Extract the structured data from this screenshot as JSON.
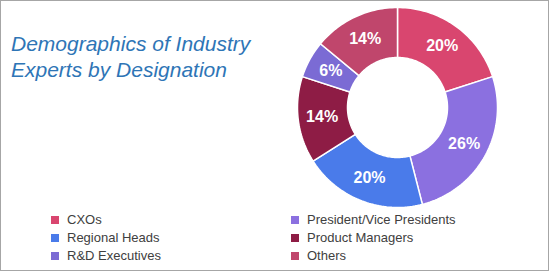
{
  "chart_data": {
    "type": "pie",
    "title": "Demographics of Industry Experts by Designation",
    "categories": [
      "CXOs",
      "President/Vice Presidents",
      "Regional Heads",
      "Product Managers",
      "R&D Executives",
      "Others"
    ],
    "values": [
      20,
      26,
      20,
      14,
      6,
      14
    ],
    "value_labels": [
      "20%",
      "26%",
      "20%",
      "14%",
      "6%",
      "14%"
    ],
    "colors": [
      "#d9466f",
      "#8b70e0",
      "#4a7bea",
      "#8e1c45",
      "#7b6bd4",
      "#c0466c"
    ],
    "data_labels": true,
    "legend": "bottom"
  }
}
